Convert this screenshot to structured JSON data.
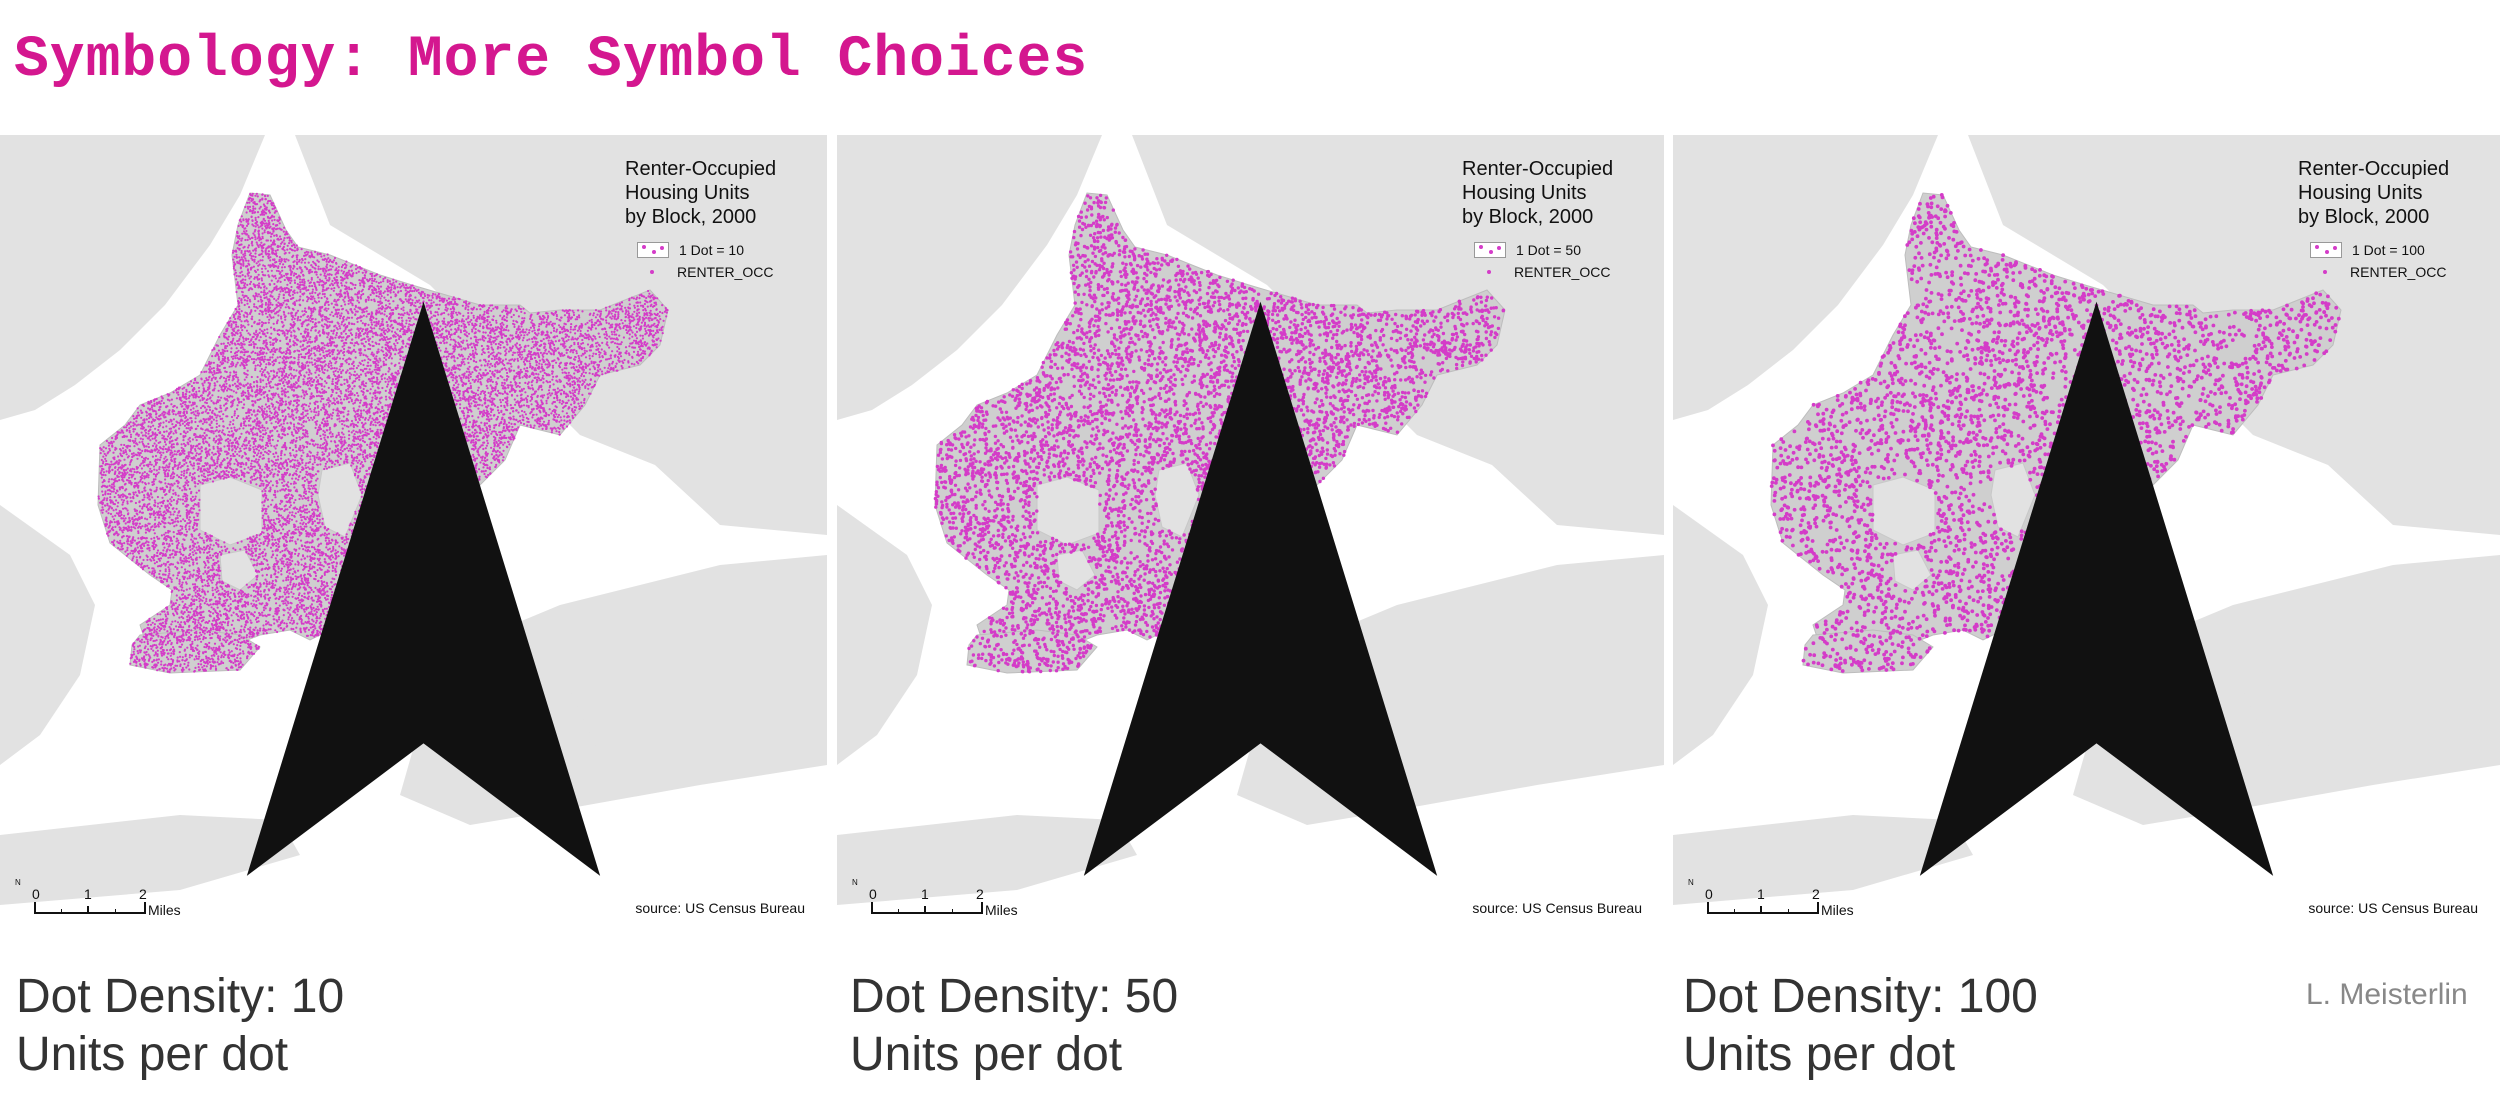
{
  "title": "Symbology: More Symbol Choices",
  "credit": "L. Meisterlin",
  "colors": {
    "accent": "#d4178f",
    "dot": "#d43cc8",
    "water": "#ffffff",
    "land": "#e2e2e2",
    "borough": "#cfcfcf"
  },
  "panels": [
    {
      "legend_title": [
        "Renter-Occupied",
        "Housing Units",
        "by Block, 2000"
      ],
      "legend_dot": "1 Dot = 10",
      "legend_field": "RENTER_OCC",
      "source": "source: US Census Bureau",
      "scale_ticks": [
        "0",
        "1",
        "2"
      ],
      "scale_unit": "Miles",
      "north": "N",
      "caption_line1": "Dot Density: 10",
      "caption_line2": "Units per dot",
      "units_per_dot": 10
    },
    {
      "legend_title": [
        "Renter-Occupied",
        "Housing Units",
        "by Block, 2000"
      ],
      "legend_dot": "1 Dot = 50",
      "legend_field": "RENTER_OCC",
      "source": "source: US Census Bureau",
      "scale_ticks": [
        "0",
        "1",
        "2"
      ],
      "scale_unit": "Miles",
      "north": "N",
      "caption_line1": "Dot Density: 50",
      "caption_line2": "Units per dot",
      "units_per_dot": 50
    },
    {
      "legend_title": [
        "Renter-Occupied",
        "Housing Units",
        "by Block, 2000"
      ],
      "legend_dot": "1 Dot = 100",
      "legend_field": "RENTER_OCC",
      "source": "source: US Census Bureau",
      "scale_ticks": [
        "0",
        "1",
        "2"
      ],
      "scale_unit": "Miles",
      "north": "N",
      "caption_line1": "Dot Density: 100",
      "caption_line2": "Units per dot",
      "units_per_dot": 100
    }
  ]
}
